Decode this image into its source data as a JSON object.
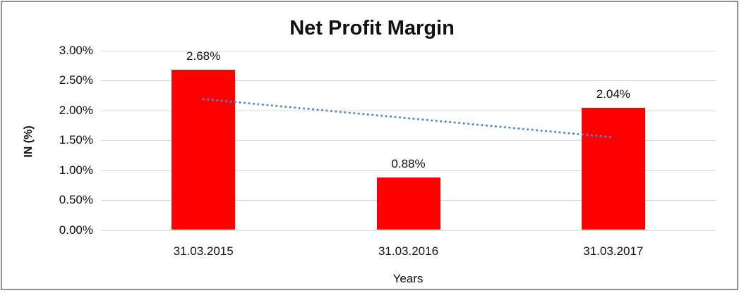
{
  "frame": {
    "border_color": "#8F8F8F"
  },
  "chart_data": {
    "type": "bar",
    "title": "Net Profit Margin",
    "xlabel": "Years",
    "ylabel": "IN (%)",
    "categories": [
      "31.03.2015",
      "31.03.2016",
      "31.03.2017"
    ],
    "values": [
      2.68,
      0.88,
      2.04
    ],
    "value_labels": [
      "2.68%",
      "0.88%",
      "2.04%"
    ],
    "ylim": [
      0,
      3
    ],
    "yticks": [
      {
        "label": "3.00%",
        "value": 3.0
      },
      {
        "label": "2.50%",
        "value": 2.5
      },
      {
        "label": "2.00%",
        "value": 2.0
      },
      {
        "label": "1.50%",
        "value": 1.5
      },
      {
        "label": "1.00%",
        "value": 1.0
      },
      {
        "label": "0.50%",
        "value": 0.5
      },
      {
        "label": "0.00%",
        "value": 0.0
      }
    ],
    "grid": "horizontal",
    "legend": "none",
    "bar_color": "#FF0000",
    "gridline_color": "#D9D9D9",
    "text_color": "#111111",
    "trendline": {
      "type": "linear",
      "style": "dotted",
      "color": "#5089C8",
      "start_value": 2.19,
      "end_value": 1.55
    }
  }
}
